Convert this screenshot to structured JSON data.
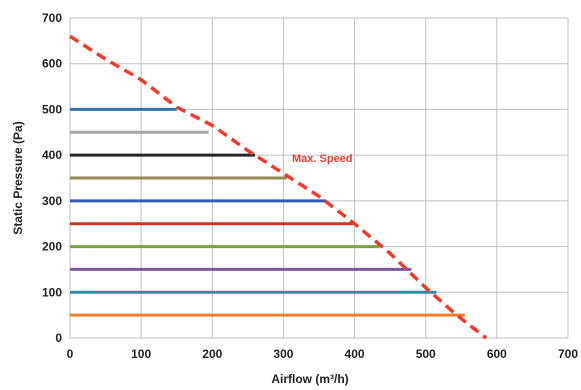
{
  "chart_data": {
    "type": "line",
    "title": "",
    "xlabel": "Airflow (m³/h)",
    "ylabel": "Static Pressure (Pa)",
    "xlim": [
      0,
      700
    ],
    "ylim": [
      0,
      700
    ],
    "x_ticks": [
      0,
      100,
      200,
      300,
      400,
      500,
      600,
      700
    ],
    "y_ticks": [
      0,
      100,
      200,
      300,
      400,
      500,
      600,
      700
    ],
    "grid": true,
    "legend": "none",
    "max_speed_curve": {
      "label": "Max. Speed",
      "color": "#ee3b2b",
      "style": "dashed",
      "points": [
        [
          0,
          660
        ],
        [
          50,
          610
        ],
        [
          100,
          565
        ],
        [
          150,
          505
        ],
        [
          200,
          465
        ],
        [
          250,
          410
        ],
        [
          300,
          360
        ],
        [
          350,
          310
        ],
        [
          400,
          250
        ],
        [
          450,
          185
        ],
        [
          500,
          110
        ],
        [
          540,
          55
        ],
        [
          560,
          30
        ],
        [
          585,
          0
        ]
      ]
    },
    "series": [
      {
        "y": 500,
        "x_start": 0,
        "x_end": 150,
        "color": "#2e75b6"
      },
      {
        "y": 450,
        "x_start": 0,
        "x_end": 195,
        "color": "#a6a6a6"
      },
      {
        "y": 400,
        "x_start": 0,
        "x_end": 260,
        "color": "#262626"
      },
      {
        "y": 350,
        "x_start": 0,
        "x_end": 305,
        "color": "#948a54"
      },
      {
        "y": 300,
        "x_start": 0,
        "x_end": 360,
        "color": "#2e5fb0"
      },
      {
        "y": 250,
        "x_start": 0,
        "x_end": 400,
        "color": "#c0392b"
      },
      {
        "y": 200,
        "x_start": 0,
        "x_end": 435,
        "color": "#77a33c"
      },
      {
        "y": 150,
        "x_start": 0,
        "x_end": 480,
        "color": "#7e57a2"
      },
      {
        "y": 100,
        "x_start": 0,
        "x_end": 515,
        "color": "#2e8ea9"
      },
      {
        "y": 50,
        "x_start": 0,
        "x_end": 555,
        "color": "#f07d2c"
      }
    ],
    "gridline_color": "#bfbfbf"
  }
}
